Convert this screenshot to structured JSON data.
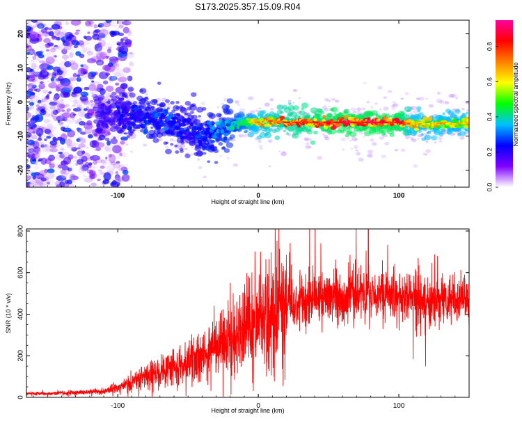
{
  "title": "S173.2025.357.15.09.R04",
  "chart_data": [
    {
      "type": "heatmap",
      "title": "",
      "xlabel": "Height of straight line (km)",
      "ylabel": "Frequency (Hz)",
      "xlim": [
        -165,
        150
      ],
      "ylim": [
        -25,
        24
      ],
      "xticks": [
        -100,
        0,
        100
      ],
      "yticks": [
        -20,
        -10,
        0,
        10,
        20
      ],
      "colorbar": {
        "label": "Normalized spectral amplitude",
        "range": [
          0.0,
          0.95
        ],
        "ticks": [
          0.0,
          0.2,
          0.4,
          0.6,
          0.8
        ],
        "colormap": [
          "#ffffff",
          "#8000ff",
          "#0000ff",
          "#00c0ff",
          "#00ff00",
          "#ffff00",
          "#ff8000",
          "#ff0000",
          "#ff00a0"
        ]
      },
      "ridge": {
        "name": "",
        "x": [
          -95,
          -80,
          -70,
          -60,
          -50,
          -40,
          -30,
          -20,
          -10,
          0,
          10,
          20,
          40,
          60,
          80,
          100,
          110,
          120,
          130,
          140,
          150
        ],
        "y": [
          -4,
          -4.5,
          -5,
          -6,
          -8,
          -10,
          -9,
          -7,
          -6,
          -6,
          -5.5,
          -6,
          -6,
          -6,
          -6,
          -6,
          -6.5,
          -6.5,
          -6.2,
          -6.5,
          -6
        ],
        "amplitude": [
          0.25,
          0.3,
          0.3,
          0.3,
          0.25,
          0.3,
          0.35,
          0.4,
          0.55,
          0.7,
          0.75,
          0.8,
          0.85,
          0.9,
          0.9,
          0.9,
          0.7,
          0.65,
          0.7,
          0.65,
          0.7
        ]
      }
    },
    {
      "type": "line",
      "title": "",
      "xlabel": "Height of straight line (km)",
      "ylabel": "SNR (10 * v/v)",
      "xlim": [
        -165,
        150
      ],
      "ylim": [
        0,
        810
      ],
      "xticks": [
        -100,
        0,
        100
      ],
      "yticks": [
        0,
        200,
        400,
        600,
        800
      ],
      "series": [
        {
          "name": "",
          "color": "#ff0000",
          "x": [
            -165,
            -150,
            -130,
            -110,
            -100,
            -90,
            -80,
            -70,
            -60,
            -50,
            -40,
            -30,
            -20,
            -10,
            0,
            10,
            20,
            30,
            40,
            50,
            60,
            70,
            80,
            90,
            100,
            110,
            120,
            130,
            140,
            150
          ],
          "y": [
            18,
            18,
            22,
            30,
            45,
            70,
            100,
            120,
            145,
            170,
            200,
            240,
            280,
            330,
            360,
            400,
            430,
            460,
            475,
            480,
            490,
            495,
            490,
            495,
            470,
            475,
            470,
            470,
            465,
            470
          ]
        }
      ]
    }
  ]
}
